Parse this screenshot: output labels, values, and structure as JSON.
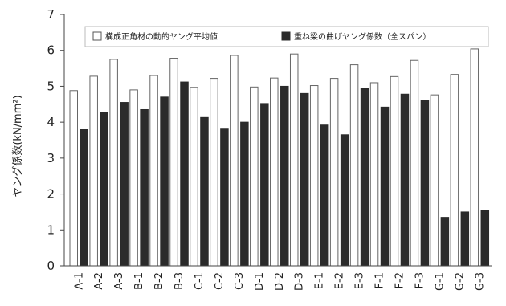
{
  "chart_data": {
    "type": "bar",
    "title": "",
    "xlabel": "",
    "ylabel": "ヤング係数(kN/mm²)",
    "ylim": [
      0,
      7
    ],
    "yticks": [
      0,
      1,
      2,
      3,
      4,
      5,
      6,
      7
    ],
    "grid": false,
    "legend_position": "top",
    "categories": [
      "A-1",
      "A-2",
      "A-3",
      "B-1",
      "B-2",
      "B-3",
      "C-1",
      "C-2",
      "C-3",
      "D-1",
      "D-2",
      "D-3",
      "E-1",
      "E-2",
      "E-3",
      "F-1",
      "F-2",
      "F-3",
      "G-1",
      "G-2",
      "G-3"
    ],
    "series": [
      {
        "name": "構成正角材の動的ヤング平均値",
        "color": "#ffffff",
        "values": [
          4.88,
          5.28,
          5.75,
          4.9,
          5.3,
          5.78,
          4.97,
          5.22,
          5.86,
          4.98,
          5.23,
          5.9,
          5.02,
          5.22,
          5.6,
          5.1,
          5.27,
          5.72,
          4.76,
          5.33,
          6.04
        ]
      },
      {
        "name": "重ね梁の曲げヤング係数（全スパン）",
        "color": "#2b2b2b",
        "values": [
          3.8,
          4.28,
          4.55,
          4.35,
          4.7,
          5.12,
          4.13,
          3.83,
          4.0,
          4.52,
          5.0,
          4.8,
          3.92,
          3.65,
          4.95,
          4.42,
          4.78,
          4.6,
          1.35,
          1.5,
          1.55
        ]
      }
    ]
  }
}
